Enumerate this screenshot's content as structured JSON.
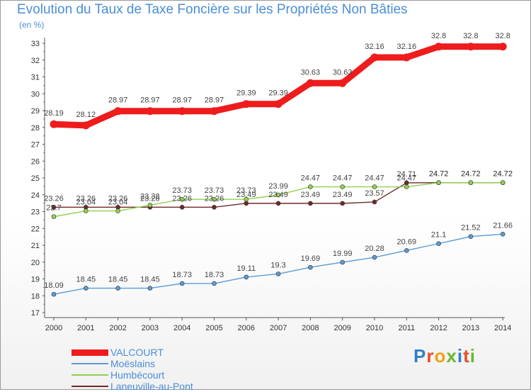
{
  "header": {
    "title": "Evolution du Taux de Taxe Foncière sur les Propriétés Non Bâties",
    "unit": "(en %)"
  },
  "logo": {
    "chars": [
      {
        "c": "P",
        "color": "#2f7fd0"
      },
      {
        "c": "r",
        "color": "#e84d2a"
      },
      {
        "c": "o",
        "color": "#f3a21b"
      },
      {
        "c": "x",
        "color": "#6ab82e"
      },
      {
        "c": "i",
        "color": "#2f7fd0"
      },
      {
        "c": "t",
        "color": "#e84d2a"
      },
      {
        "c": "i",
        "color": "#6ab82e"
      }
    ]
  },
  "chart_data": {
    "type": "line",
    "title": "Evolution du Taux de Taxe Foncière sur les Propriétés Non Bâties",
    "ylabel": "(en %)",
    "xlabel": "",
    "ylim": [
      17,
      33
    ],
    "yticks": [
      "17",
      "18",
      "19",
      "20",
      "21",
      "22",
      "23",
      "24",
      "25",
      "26",
      "27",
      "28",
      "29",
      "30",
      "31",
      "32",
      "33"
    ],
    "categories": [
      "2000",
      "2001",
      "2002",
      "2003",
      "2004",
      "2005",
      "2006",
      "2007",
      "2008",
      "2009",
      "2010",
      "2011",
      "2012",
      "2013",
      "2014"
    ],
    "grid": false,
    "legend": "bottom-left",
    "series": [
      {
        "name": "VALCOURT",
        "color": "#ee1c1c",
        "width": 9,
        "values": [
          28.19,
          28.12,
          28.97,
          28.97,
          28.97,
          28.97,
          29.39,
          29.39,
          30.63,
          30.63,
          32.16,
          32.16,
          32.8,
          32.8,
          32.8
        ],
        "labels": [
          "28.19",
          "28.12",
          "28.97",
          "28.97",
          "28.97",
          "28.97",
          "29.39",
          "29.39",
          "30.63",
          "30.63",
          "32.16",
          "32.16",
          "32.8",
          "32.8",
          "32.8"
        ]
      },
      {
        "name": "Moëslains",
        "color": "#5b9bd5",
        "width": 1.4,
        "values": [
          18.09,
          18.45,
          18.45,
          18.45,
          18.73,
          18.73,
          19.11,
          19.3,
          19.69,
          19.99,
          20.28,
          20.69,
          21.1,
          21.52,
          21.66
        ],
        "labels": [
          "18.09",
          "18.45",
          "18.45",
          "18.45",
          "18.73",
          "18.73",
          "19.11",
          "19.3",
          "19.69",
          "19.99",
          "20.28",
          "20.69",
          "21.1",
          "21.52",
          "21.66"
        ]
      },
      {
        "name": "Humbécourt",
        "color": "#92d050",
        "width": 1.4,
        "values": [
          22.7,
          23.04,
          23.04,
          23.38,
          23.73,
          23.73,
          23.73,
          23.99,
          24.47,
          24.47,
          24.47,
          24.47,
          24.72,
          24.72,
          24.72
        ],
        "labels": [
          "22.7",
          "23.04",
          "23.04",
          "23.38",
          "23.73",
          "23.73",
          "23.73",
          "23.99",
          "24.47",
          "24.47",
          "24.47",
          "24.47",
          "24.72",
          "24.72",
          "24.72"
        ]
      },
      {
        "name": "Laneuville-au-Pont",
        "color": "#6e2a2a",
        "width": 1.4,
        "values": [
          23.26,
          23.26,
          23.26,
          23.26,
          23.26,
          23.26,
          23.49,
          23.49,
          23.49,
          23.49,
          23.57,
          24.71,
          24.72,
          24.72,
          24.72
        ],
        "labels": [
          "23.26",
          "23.26",
          "23.26",
          "23.26",
          "23.26",
          "23.26",
          "23.49",
          "23.49",
          "23.49",
          "23.49",
          "23.57",
          "24.71",
          "24.72",
          "24.72",
          "24.72"
        ]
      }
    ]
  }
}
